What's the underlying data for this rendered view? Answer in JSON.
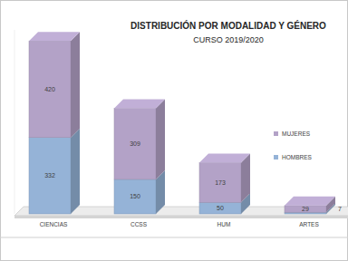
{
  "chart_data": {
    "type": "bar",
    "title": "DISTRIBUCIÓN POR MODALIDAD Y GÉNERO",
    "subtitle": "CURSO 2019/2020",
    "categories": [
      "CIENCIAS",
      "CCSS",
      "HUM",
      "ARTES"
    ],
    "series": [
      {
        "name": "HOMBRES",
        "color": "#95b3d7",
        "values": [
          332,
          150,
          50,
          7
        ]
      },
      {
        "name": "MUJERES",
        "color": "#b3a2c7",
        "values": [
          420,
          309,
          173,
          29
        ]
      }
    ],
    "ylim": [
      0,
      800
    ],
    "stacked": true,
    "data_labels": true,
    "tick_labels": "x",
    "legend": "right"
  }
}
